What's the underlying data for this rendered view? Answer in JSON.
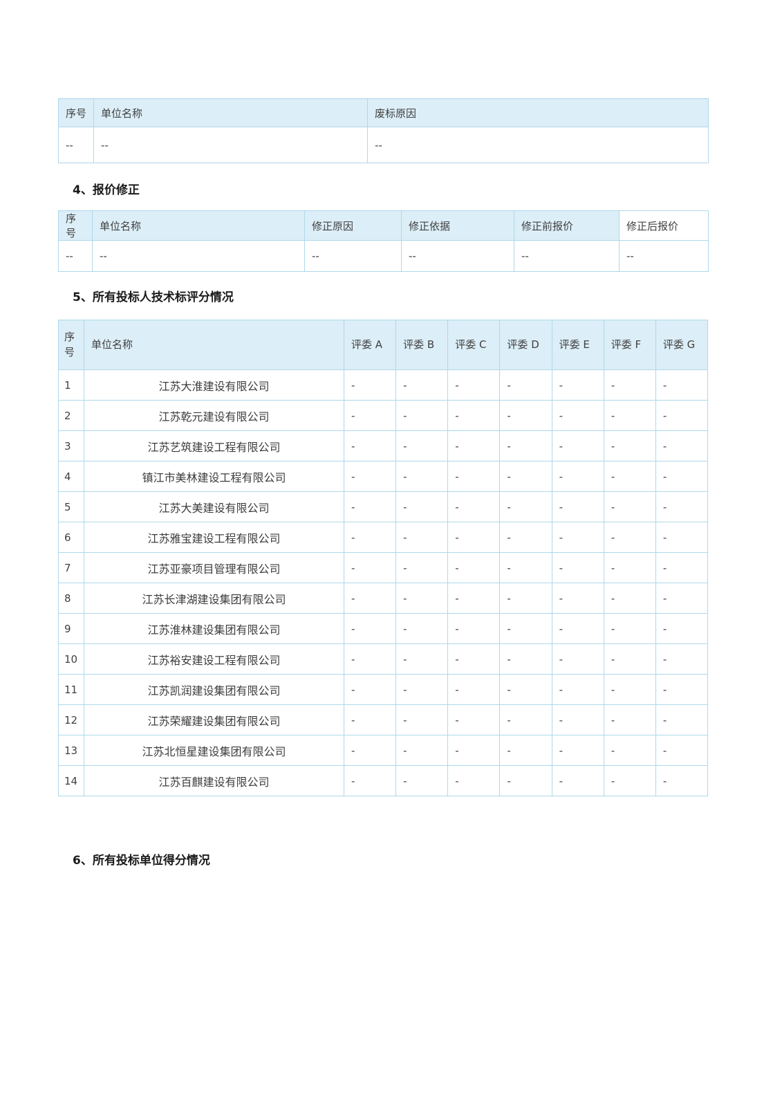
{
  "colors": {
    "header_bg": "#dceef7",
    "border": "#aed8ea",
    "cell_text": "#404040",
    "heading_text": "#1a1a1a",
    "page_bg": "#ffffff"
  },
  "sections": {
    "price_correction": {
      "title": "4、报价修正"
    },
    "tech_scores": {
      "title": "5、所有投标人技术标评分情况"
    },
    "unit_scores": {
      "title": "6、所有投标单位得分情况"
    }
  },
  "tables": {
    "rejection": {
      "headers": [
        "序号",
        "单位名称",
        "废标原因"
      ],
      "rows": [
        [
          "--",
          "--",
          "--"
        ]
      ]
    },
    "correction": {
      "headers": [
        "序号",
        "单位名称",
        "修正原因",
        "修正依据",
        "修正前报价",
        "修正后报价"
      ],
      "rows": [
        [
          "--",
          "--",
          "--",
          "--",
          "--",
          "--"
        ]
      ]
    },
    "tech": {
      "headers": [
        "序号",
        "单位名称",
        "评委 A",
        "评委 B",
        "评委 C",
        "评委 D",
        "评委 E",
        "评委 F",
        "评委 G"
      ],
      "rows": [
        [
          "1",
          "江苏大淮建设有限公司",
          "-",
          "-",
          "-",
          "-",
          "-",
          "-",
          "-"
        ],
        [
          "2",
          "江苏乾元建设有限公司",
          "-",
          "-",
          "-",
          "-",
          "-",
          "-",
          "-"
        ],
        [
          "3",
          "江苏艺筑建设工程有限公司",
          "-",
          "-",
          "-",
          "-",
          "-",
          "-",
          "-"
        ],
        [
          "4",
          "镇江市美林建设工程有限公司",
          "-",
          "-",
          "-",
          "-",
          "-",
          "-",
          "-"
        ],
        [
          "5",
          "江苏大美建设有限公司",
          "-",
          "-",
          "-",
          "-",
          "-",
          "-",
          "-"
        ],
        [
          "6",
          "江苏雅宝建设工程有限公司",
          "-",
          "-",
          "-",
          "-",
          "-",
          "-",
          "-"
        ],
        [
          "7",
          "江苏亚豪项目管理有限公司",
          "-",
          "-",
          "-",
          "-",
          "-",
          "-",
          "-"
        ],
        [
          "8",
          "江苏长津湖建设集团有限公司",
          "-",
          "-",
          "-",
          "-",
          "-",
          "-",
          "-"
        ],
        [
          "9",
          "江苏淮林建设集团有限公司",
          "-",
          "-",
          "-",
          "-",
          "-",
          "-",
          "-"
        ],
        [
          "10",
          "江苏裕安建设工程有限公司",
          "-",
          "-",
          "-",
          "-",
          "-",
          "-",
          "-"
        ],
        [
          "11",
          "江苏凯润建设集团有限公司",
          "-",
          "-",
          "-",
          "-",
          "-",
          "-",
          "-"
        ],
        [
          "12",
          "江苏荣耀建设集团有限公司",
          "-",
          "-",
          "-",
          "-",
          "-",
          "-",
          "-"
        ],
        [
          "13",
          "江苏北恒星建设集团有限公司",
          "-",
          "-",
          "-",
          "-",
          "-",
          "-",
          "-"
        ],
        [
          "14",
          "江苏百麒建设有限公司",
          "-",
          "-",
          "-",
          "-",
          "-",
          "-",
          "-"
        ]
      ]
    }
  }
}
